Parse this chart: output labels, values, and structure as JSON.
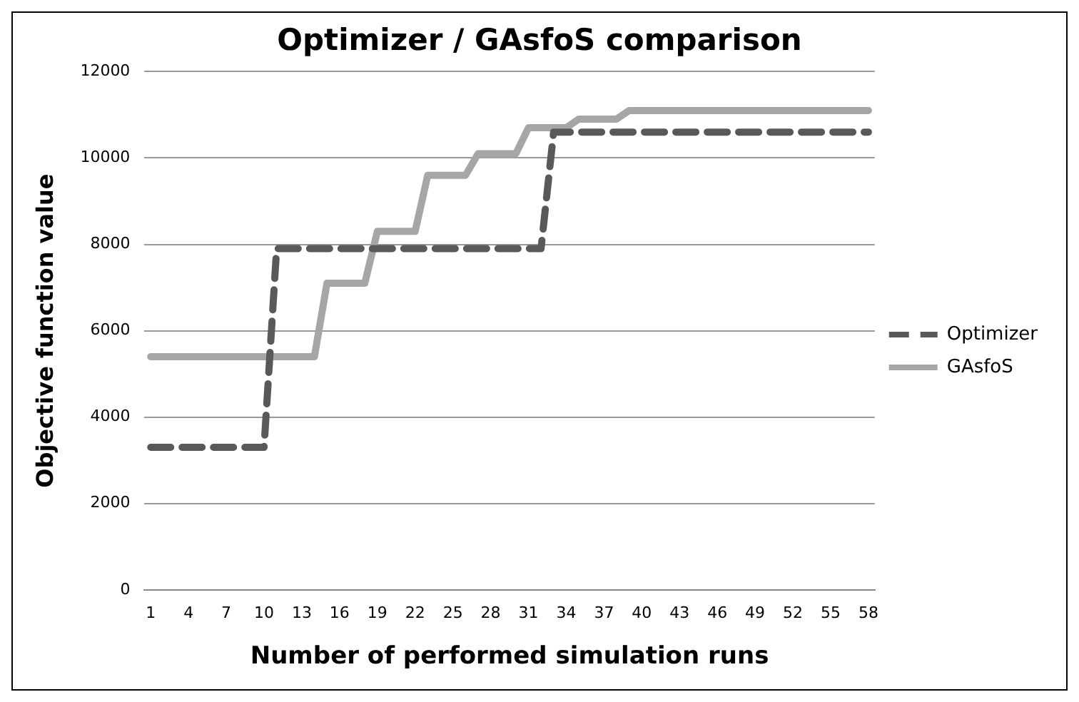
{
  "chart_data": {
    "type": "line",
    "title": "Optimizer / GAsfoS comparison",
    "xlabel": "Number of performed simulation runs",
    "ylabel": "Objective function value",
    "categories": [
      "1",
      null,
      null,
      "4",
      null,
      null,
      "7",
      null,
      null,
      "10",
      null,
      null,
      "13",
      null,
      null,
      "16",
      null,
      null,
      "19",
      null,
      null,
      "22",
      null,
      null,
      "25",
      null,
      null,
      "28",
      null,
      null,
      "31",
      null,
      null,
      "34",
      null,
      null,
      "37",
      null,
      null,
      "40",
      null,
      null,
      "43",
      null,
      null,
      "46",
      null,
      null,
      "49",
      null,
      null,
      "52",
      null,
      null,
      "55",
      null,
      null,
      "58"
    ],
    "series": [
      {
        "name": "Optimizer",
        "color": "#595959",
        "line_style": "dashed",
        "values": [
          3300,
          3300,
          3300,
          3300,
          3300,
          3300,
          3300,
          3300,
          3300,
          3300,
          7900,
          7900,
          7900,
          7900,
          7900,
          7900,
          7900,
          7900,
          7900,
          7900,
          7900,
          7900,
          7900,
          7900,
          7900,
          7900,
          7900,
          7900,
          7900,
          7900,
          7900,
          7900,
          10600,
          10600,
          10600,
          10600,
          10600,
          10600,
          10600,
          10600,
          10600,
          10600,
          10600,
          10600,
          10600,
          10600,
          10600,
          10600,
          10600,
          10600,
          10600,
          10600,
          10600,
          10600,
          10600,
          10600,
          10600,
          10600
        ]
      },
      {
        "name": "GAsfoS",
        "color": "#a6a6a6",
        "line_style": "solid",
        "values": [
          5400,
          5400,
          5400,
          5400,
          5400,
          5400,
          5400,
          5400,
          5400,
          5400,
          5400,
          5400,
          5400,
          5400,
          7100,
          7100,
          7100,
          7100,
          8300,
          8300,
          8300,
          8300,
          9600,
          9600,
          9600,
          9600,
          10100,
          10100,
          10100,
          10100,
          10700,
          10700,
          10700,
          10700,
          10900,
          10900,
          10900,
          10900,
          11100,
          11100,
          11100,
          11100,
          11100,
          11100,
          11100,
          11100,
          11100,
          11100,
          11100,
          11100,
          11100,
          11100,
          11100,
          11100,
          11100,
          11100,
          11100,
          11100
        ]
      }
    ],
    "ylim": [
      0,
      12000
    ],
    "yticks": [
      0,
      2000,
      4000,
      6000,
      8000,
      10000,
      12000
    ],
    "grid": "y",
    "legend": "right",
    "marker": "none"
  }
}
